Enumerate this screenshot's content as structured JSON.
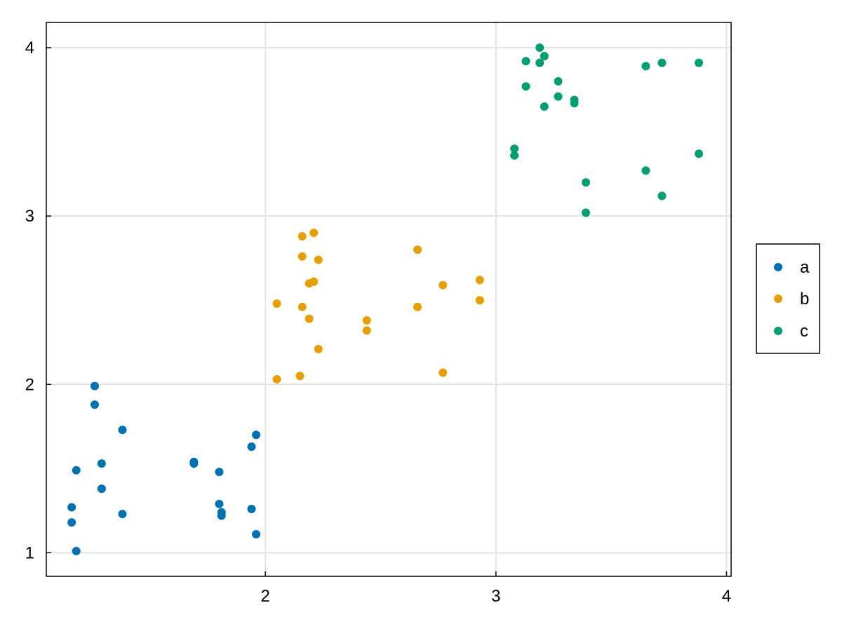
{
  "chart_data": {
    "type": "scatter",
    "title": "",
    "xlabel": "",
    "ylabel": "",
    "xlim": [
      1.05,
      4.02
    ],
    "ylim": [
      0.86,
      4.15
    ],
    "xticks": [
      2,
      3,
      4
    ],
    "yticks": [
      1,
      2,
      3,
      4
    ],
    "xtick_labels": [
      "2",
      "3",
      "4"
    ],
    "ytick_labels": [
      "1",
      "2",
      "3",
      "4"
    ],
    "grid": true,
    "legend_position": "right",
    "series": [
      {
        "name": "a",
        "color": "#0072B2",
        "points": [
          [
            1.26,
            1.99
          ],
          [
            1.26,
            1.88
          ],
          [
            1.38,
            1.73
          ],
          [
            1.29,
            1.53
          ],
          [
            1.18,
            1.49
          ],
          [
            1.29,
            1.38
          ],
          [
            1.16,
            1.27
          ],
          [
            1.38,
            1.23
          ],
          [
            1.16,
            1.18
          ],
          [
            1.18,
            1.01
          ],
          [
            1.69,
            1.54
          ],
          [
            1.69,
            1.53
          ],
          [
            1.8,
            1.48
          ],
          [
            1.8,
            1.29
          ],
          [
            1.81,
            1.24
          ],
          [
            1.81,
            1.22
          ],
          [
            1.96,
            1.7
          ],
          [
            1.94,
            1.63
          ],
          [
            1.94,
            1.26
          ],
          [
            1.96,
            1.11
          ]
        ]
      },
      {
        "name": "b",
        "color": "#E69F00",
        "points": [
          [
            2.21,
            2.9
          ],
          [
            2.16,
            2.88
          ],
          [
            2.16,
            2.76
          ],
          [
            2.23,
            2.74
          ],
          [
            2.21,
            2.61
          ],
          [
            2.19,
            2.6
          ],
          [
            2.05,
            2.48
          ],
          [
            2.16,
            2.46
          ],
          [
            2.19,
            2.39
          ],
          [
            2.23,
            2.21
          ],
          [
            2.05,
            2.03
          ],
          [
            2.15,
            2.05
          ],
          [
            2.44,
            2.38
          ],
          [
            2.44,
            2.32
          ],
          [
            2.66,
            2.8
          ],
          [
            2.66,
            2.46
          ],
          [
            2.77,
            2.59
          ],
          [
            2.77,
            2.07
          ],
          [
            2.93,
            2.62
          ],
          [
            2.93,
            2.5
          ]
        ]
      },
      {
        "name": "c",
        "color": "#009E73",
        "points": [
          [
            3.19,
            4.0
          ],
          [
            3.21,
            3.95
          ],
          [
            3.13,
            3.92
          ],
          [
            3.19,
            3.91
          ],
          [
            3.27,
            3.8
          ],
          [
            3.13,
            3.77
          ],
          [
            3.27,
            3.71
          ],
          [
            3.34,
            3.69
          ],
          [
            3.34,
            3.67
          ],
          [
            3.21,
            3.65
          ],
          [
            3.08,
            3.4
          ],
          [
            3.08,
            3.36
          ],
          [
            3.39,
            3.2
          ],
          [
            3.39,
            3.02
          ],
          [
            3.65,
            3.89
          ],
          [
            3.72,
            3.91
          ],
          [
            3.88,
            3.91
          ],
          [
            3.65,
            3.27
          ],
          [
            3.88,
            3.37
          ],
          [
            3.72,
            3.12
          ]
        ]
      }
    ]
  }
}
